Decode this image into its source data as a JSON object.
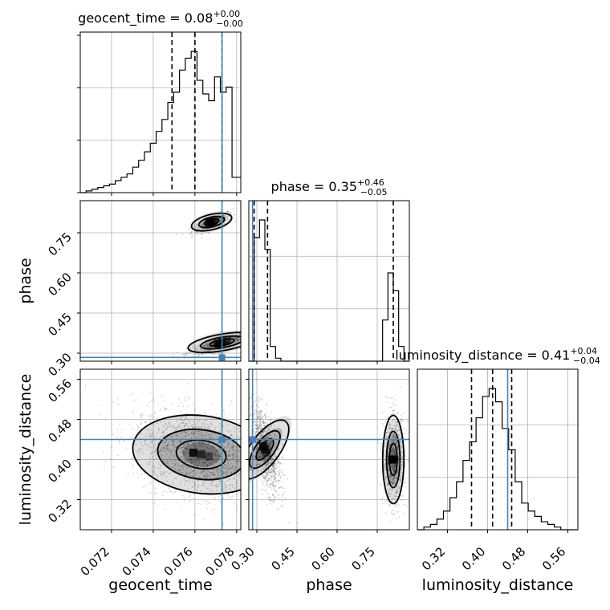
{
  "chart_data": {
    "type": "corner",
    "parameters": [
      "geocent_time",
      "phase",
      "luminosity_distance"
    ],
    "truth_values": {
      "geocent_time": 0.0773,
      "phase": 0.284,
      "luminosity_distance": 0.44
    },
    "panel_titles": [
      {
        "param": "geocent_time",
        "text": "geocent_time = 0.08",
        "sup": "+0.00",
        "sub": "−0.00"
      },
      {
        "param": "phase",
        "text": "phase = 0.35",
        "sup": "+0.46",
        "sub": "−0.05"
      },
      {
        "param": "luminosity_distance",
        "text": "luminosity_distance = 0.41",
        "sup": "+0.04",
        "sub": "−0.04"
      }
    ],
    "axes": {
      "geocent_time": {
        "label": "geocent_time",
        "range": [
          0.0705,
          0.0782
        ],
        "ticks": [
          "0.072",
          "0.074",
          "0.076",
          "0.078"
        ],
        "tick_values": [
          0.072,
          0.074,
          0.076,
          0.078
        ]
      },
      "phase": {
        "label": "phase",
        "range": [
          0.27,
          0.87
        ],
        "ticks": [
          "0.30",
          "0.45",
          "0.60",
          "0.75"
        ],
        "tick_values": [
          0.3,
          0.45,
          0.6,
          0.75
        ]
      },
      "luminosity_distance": {
        "label": "luminosity_distance",
        "range": [
          0.26,
          0.58
        ],
        "ticks": [
          "0.32",
          "0.40",
          "0.48",
          "0.56"
        ],
        "tick_values": [
          0.32,
          0.4,
          0.48,
          0.56
        ]
      }
    },
    "quantiles": {
      "geocent_time": [
        0.0749,
        0.076,
        0.0773
      ],
      "phase": [
        0.29,
        0.34,
        0.81
      ],
      "luminosity_distance": [
        0.368,
        0.41,
        0.448
      ]
    },
    "marginals": {
      "geocent_time": {
        "edges": [
          0.0705,
          0.07078,
          0.07106,
          0.07134,
          0.07162,
          0.0719,
          0.07218,
          0.07246,
          0.07274,
          0.07302,
          0.0733,
          0.07358,
          0.07386,
          0.07414,
          0.07442,
          0.0747,
          0.07498,
          0.07526,
          0.07554,
          0.07582,
          0.0761,
          0.07638,
          0.07666,
          0.07694,
          0.07722,
          0.0775,
          0.07778,
          0.07806,
          0.0782
        ],
        "counts": [
          0,
          1,
          2,
          3,
          4,
          5,
          7,
          9,
          11,
          15,
          19,
          24,
          29,
          36,
          43,
          53,
          59,
          72,
          79,
          83,
          66,
          58,
          54,
          68,
          59,
          62,
          9,
          9
        ]
      },
      "phase": {
        "edges": [
          0.27,
          0.29,
          0.31,
          0.33,
          0.35,
          0.37,
          0.39,
          0.41,
          0.43,
          0.45,
          0.47,
          0.49,
          0.51,
          0.53,
          0.55,
          0.57,
          0.59,
          0.61,
          0.63,
          0.65,
          0.67,
          0.69,
          0.71,
          0.73,
          0.75,
          0.77,
          0.79,
          0.81,
          0.83,
          0.85,
          0.87
        ],
        "counts": [
          0,
          42,
          48,
          38,
          5,
          1,
          0,
          0,
          0,
          0,
          0,
          0,
          0,
          0,
          0,
          0,
          0,
          0,
          0,
          0,
          0,
          0,
          0,
          0,
          0,
          14,
          30,
          24,
          5,
          0
        ]
      },
      "luminosity_distance": {
        "edges": [
          0.26,
          0.273,
          0.286,
          0.299,
          0.312,
          0.325,
          0.338,
          0.351,
          0.364,
          0.377,
          0.39,
          0.403,
          0.416,
          0.429,
          0.442,
          0.455,
          0.468,
          0.481,
          0.494,
          0.507,
          0.52,
          0.533,
          0.546,
          0.559,
          0.572,
          0.58
        ],
        "counts": [
          0,
          1,
          2,
          4,
          7,
          12,
          18,
          26,
          33,
          42,
          50,
          53,
          48,
          38,
          30,
          18,
          10,
          7,
          5,
          3,
          2,
          1,
          0,
          0,
          0
        ]
      }
    },
    "joint_2d": [
      {
        "x": "geocent_time",
        "y": "phase",
        "modes": [
          {
            "cx": 0.0768,
            "cy": 0.79,
            "sx": 0.00045,
            "sy": 0.018,
            "rho": 0.8,
            "n": 350
          },
          {
            "cx": 0.0773,
            "cy": 0.34,
            "sx": 0.00075,
            "sy": 0.02,
            "rho": 0.85,
            "n": 700
          }
        ]
      },
      {
        "x": "geocent_time",
        "y": "luminosity_distance",
        "modes": [
          {
            "cx": 0.0763,
            "cy": 0.41,
            "sx": 0.0015,
            "sy": 0.04,
            "rho": -0.35,
            "n": 1900
          }
        ]
      },
      {
        "x": "phase",
        "y": "luminosity_distance",
        "modes": [
          {
            "cx": 0.33,
            "cy": 0.42,
            "sx": 0.025,
            "sy": 0.04,
            "rho": -0.6,
            "n": 1100
          },
          {
            "cx": 0.81,
            "cy": 0.4,
            "sx": 0.018,
            "sy": 0.04,
            "rho": 0.0,
            "n": 900
          }
        ]
      }
    ]
  }
}
